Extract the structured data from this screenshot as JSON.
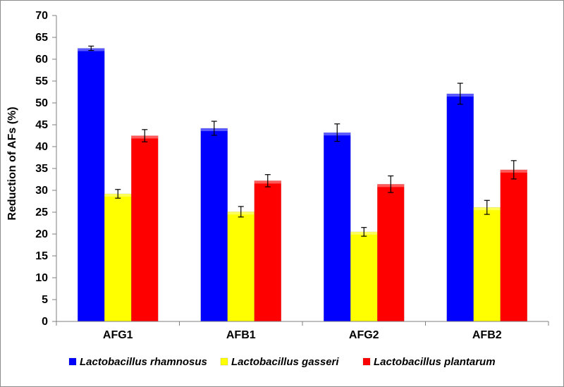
{
  "chart_data": {
    "type": "bar",
    "title": "",
    "xlabel": "",
    "ylabel": "Reduction of AFs (%)",
    "ylim": [
      0,
      70
    ],
    "yticks": [
      "0",
      "5",
      "10",
      "15",
      "20",
      "25",
      "30",
      "35",
      "40",
      "45",
      "50",
      "55",
      "60",
      "65",
      "70"
    ],
    "categories": [
      "AFG1",
      "AFB1",
      "AFG2",
      "AFB2"
    ],
    "series": [
      {
        "name": "Lactobacillus rhamnosus",
        "color": "#0000ff",
        "values": [
          62.5,
          44.2,
          43.2,
          52.1
        ],
        "errors": [
          0.5,
          1.6,
          2.0,
          2.4
        ]
      },
      {
        "name": "Lactobacillus gasseri",
        "color": "#ffff00",
        "values": [
          29.2,
          25.1,
          20.5,
          26.1
        ],
        "errors": [
          1.0,
          1.2,
          1.0,
          1.6
        ]
      },
      {
        "name": "Lactobacillus plantarum",
        "color": "#ff0000",
        "values": [
          42.5,
          32.2,
          31.4,
          34.7
        ],
        "errors": [
          1.4,
          1.4,
          1.9,
          2.1
        ]
      }
    ],
    "grid": false,
    "legend_position": "bottom"
  }
}
